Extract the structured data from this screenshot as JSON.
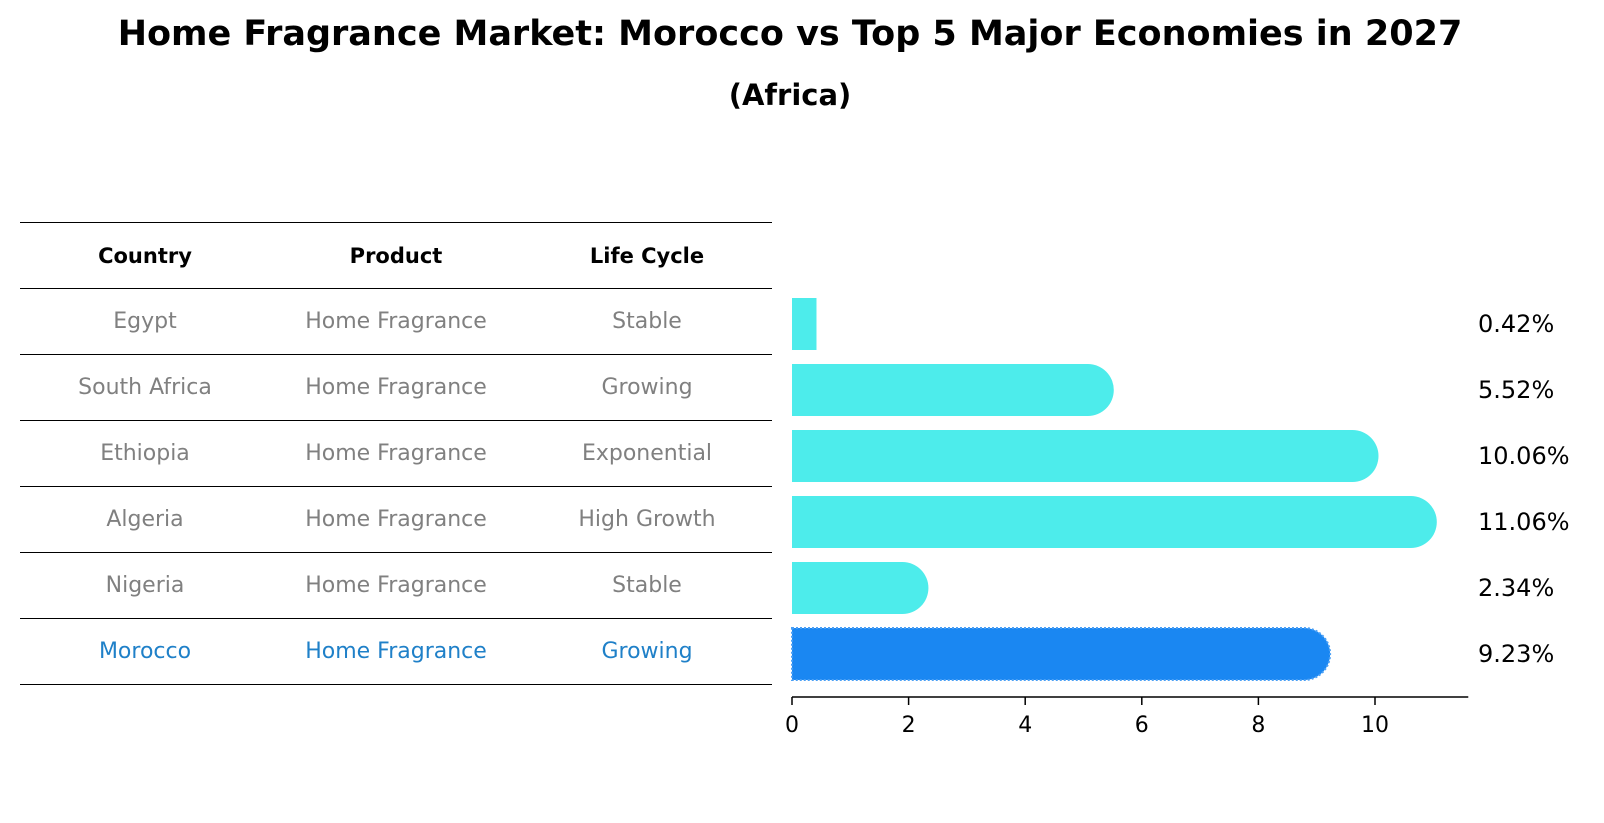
{
  "title": "Home Fragrance Market: Morocco vs Top 5 Major Economies in 2027",
  "subtitle": "(Africa)",
  "table": {
    "headers": [
      "Country",
      "Product",
      "Life Cycle"
    ],
    "rows": [
      {
        "country": "Egypt",
        "product": "Home Fragrance",
        "life_cycle": "Stable"
      },
      {
        "country": "South Africa",
        "product": "Home Fragrance",
        "life_cycle": "Growing"
      },
      {
        "country": "Ethiopia",
        "product": "Home Fragrance",
        "life_cycle": "Exponential"
      },
      {
        "country": "Algeria",
        "product": "Home Fragrance",
        "life_cycle": "High Growth"
      },
      {
        "country": "Nigeria",
        "product": "Home Fragrance",
        "life_cycle": "Stable"
      },
      {
        "country": "Morocco",
        "product": "Home Fragrance",
        "life_cycle": "Growing"
      }
    ],
    "highlight_color": "#1f80c8",
    "text_color": "#808080"
  },
  "chart_data": {
    "type": "bar",
    "orientation": "horizontal",
    "categories": [
      "Egypt",
      "South Africa",
      "Ethiopia",
      "Algeria",
      "Nigeria",
      "Morocco"
    ],
    "values": [
      0.42,
      5.52,
      10.06,
      11.06,
      2.34,
      9.23
    ],
    "value_labels": [
      "0.42%",
      "5.52%",
      "10.06%",
      "11.06%",
      "2.34%",
      "9.23%"
    ],
    "xlim": [
      0,
      11.6
    ],
    "xticks": [
      0,
      2,
      4,
      6,
      8,
      10
    ],
    "xtick_labels": [
      "0",
      "2",
      "4",
      "6",
      "8",
      "10"
    ],
    "highlight": "Morocco",
    "colors": {
      "bar": "#4deceb",
      "highlight_bar": "#1a87f2"
    },
    "grid": false
  }
}
